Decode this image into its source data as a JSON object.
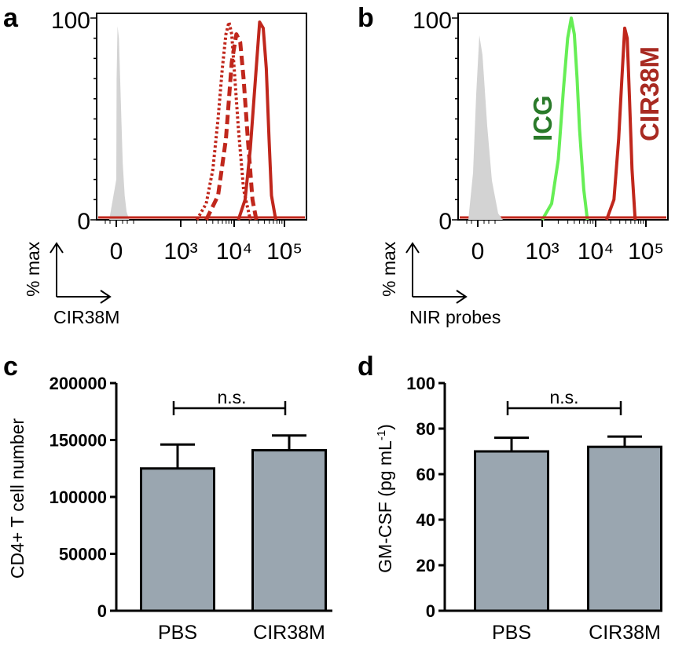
{
  "colors": {
    "isotype": "#d3d3d3",
    "cir38m": "#c0271c",
    "icg": "#66ee55",
    "icg_label": "#2a7a2a",
    "cir38m_label": "#a82a22",
    "bar_fill": "#9aa6b0"
  },
  "chart_data": [
    {
      "panel": "a",
      "type": "line",
      "x_ticks": [
        "0",
        "10³",
        "10⁴",
        "10⁵"
      ],
      "y_ticks": [
        "0",
        "100"
      ],
      "ylim": [
        0,
        100
      ],
      "xscale": "biexponential",
      "x_axis_arrow_label": "CIR38M",
      "y_axis_arrow_label": "% max",
      "series": [
        {
          "style": "grey-filled",
          "x": [
            -10,
            0,
            5,
            20,
            40,
            60,
            80,
            100,
            130,
            160,
            200
          ],
          "y": [
            0,
            20,
            70,
            96,
            90,
            70,
            48,
            28,
            12,
            4,
            0
          ]
        },
        {
          "style": "dotted",
          "x": [
            2000,
            3000,
            4000,
            5000,
            6000,
            7000,
            8000,
            9000,
            10000,
            12000,
            15000,
            20000
          ],
          "y": [
            0,
            8,
            25,
            50,
            75,
            92,
            98,
            92,
            75,
            45,
            15,
            0
          ]
        },
        {
          "style": "dashed",
          "x": [
            3000,
            5000,
            7000,
            9000,
            11000,
            13000,
            15000,
            18000,
            22000,
            26000
          ],
          "y": [
            0,
            12,
            40,
            78,
            92,
            88,
            70,
            40,
            10,
            0
          ]
        },
        {
          "style": "solid",
          "x": [
            12000,
            16000,
            20000,
            25000,
            30000,
            35000,
            40000,
            45000,
            50000,
            60000
          ],
          "y": [
            0,
            10,
            35,
            70,
            98,
            95,
            75,
            40,
            12,
            0
          ]
        }
      ]
    },
    {
      "panel": "b",
      "type": "line",
      "x_ticks": [
        "0",
        "10³",
        "10⁴",
        "10⁵"
      ],
      "y_ticks": [
        "0",
        "100"
      ],
      "ylim": [
        0,
        100
      ],
      "xscale": "biexponential",
      "x_axis_arrow_label": "NIR probes",
      "y_axis_arrow_label": "% max",
      "series": [
        {
          "name": "ICG",
          "x": [
            1000,
            1500,
            2000,
            2500,
            3000,
            3500,
            4000,
            4500,
            5000,
            6000,
            7000
          ],
          "y": [
            0,
            8,
            30,
            65,
            90,
            100,
            92,
            70,
            45,
            15,
            0
          ]
        },
        {
          "name": "CIR38M",
          "x": [
            16000,
            22000,
            27000,
            31000,
            35000,
            39000,
            43000,
            48000,
            55000
          ],
          "y": [
            0,
            10,
            40,
            70,
            95,
            90,
            60,
            25,
            0
          ]
        }
      ]
    },
    {
      "panel": "c",
      "type": "bar",
      "categories": [
        "PBS",
        "CIR38M"
      ],
      "values": [
        125000,
        141000
      ],
      "errors": [
        21000,
        13000
      ],
      "ylabel": "CD4+ T cell number",
      "ylim": [
        0,
        200000
      ],
      "y_ticks": [
        "0",
        "50000",
        "100000",
        "150000",
        "200000"
      ],
      "annotation": "n.s."
    },
    {
      "panel": "d",
      "type": "bar",
      "categories": [
        "PBS",
        "CIR38M"
      ],
      "values": [
        70,
        72
      ],
      "errors": [
        6,
        4.5
      ],
      "ylabel": "GM-CSF (pg mL",
      "ylabel_superscript": "-1",
      "ylabel_close": ")",
      "ylim": [
        0,
        100
      ],
      "y_ticks": [
        "0",
        "20",
        "40",
        "60",
        "80",
        "100"
      ],
      "annotation": "n.s."
    }
  ]
}
